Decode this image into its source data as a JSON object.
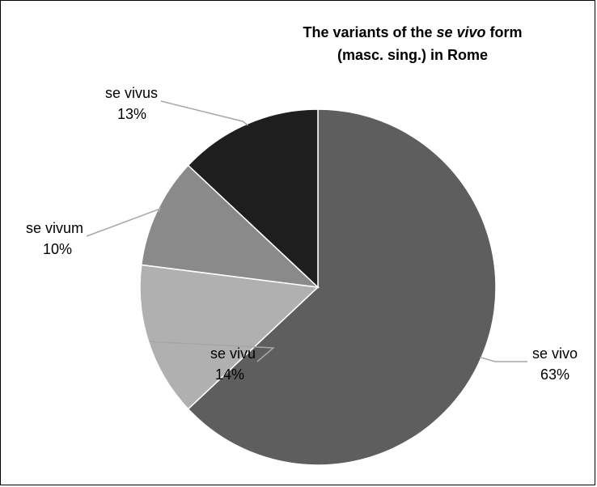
{
  "chart_data": {
    "type": "pie",
    "title_line1_prefix": "The variants of the ",
    "title_line1_italic": "se vivo",
    "title_line1_suffix": " form",
    "title_line2": "(masc. sing.) in Rome",
    "slices": [
      {
        "label": "se vivo",
        "value": 63,
        "percent_label": "63%",
        "color": "#5e5e5e"
      },
      {
        "label": "se vivu",
        "value": 14,
        "percent_label": "14%",
        "color": "#b0b0b0"
      },
      {
        "label": "se vivum",
        "value": 10,
        "percent_label": "10%",
        "color": "#8a8a8a"
      },
      {
        "label": "se vivus",
        "value": 13,
        "percent_label": "13%",
        "color": "#1e1e1e"
      }
    ],
    "start": "12 o'clock",
    "direction": "clockwise",
    "slice_border_color": "#ffffff",
    "leader_line_color": "#a6a6a6"
  }
}
